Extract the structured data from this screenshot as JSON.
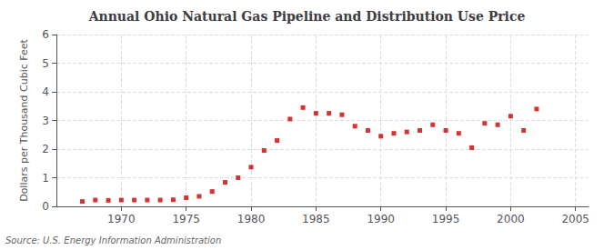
{
  "chart_data": {
    "type": "scatter",
    "title": "Annual Ohio Natural Gas Pipeline and Distribution Use Price",
    "ylabel": "Dollars per Thousand Cubic Feet",
    "annotation": "Source: U.S. Energy Information Administration",
    "x": [
      1967,
      1968,
      1969,
      1970,
      1971,
      1972,
      1973,
      1974,
      1975,
      1976,
      1977,
      1978,
      1979,
      1980,
      1981,
      1982,
      1983,
      1984,
      1985,
      1986,
      1987,
      1988,
      1989,
      1990,
      1991,
      1992,
      1993,
      1994,
      1995,
      1996,
      1997,
      1998,
      1999,
      2000,
      2001,
      2002
    ],
    "values": [
      0.17,
      0.22,
      0.21,
      0.22,
      0.22,
      0.22,
      0.22,
      0.23,
      0.3,
      0.35,
      0.52,
      0.84,
      1.0,
      1.37,
      1.95,
      2.3,
      3.05,
      3.45,
      3.25,
      3.25,
      3.2,
      2.8,
      2.65,
      2.45,
      2.55,
      2.6,
      2.65,
      2.85,
      2.65,
      2.55,
      2.05,
      2.9,
      2.85,
      3.15,
      2.65,
      3.4
    ],
    "color": "#cc0000",
    "marker": "square",
    "xlim": [
      1965,
      2006
    ],
    "ylim": [
      0,
      6
    ],
    "xticks": [
      1970,
      1975,
      1980,
      1985,
      1990,
      1995,
      2000,
      2005
    ],
    "yticks": [
      0,
      1,
      2,
      3,
      4,
      5,
      6
    ],
    "grid": true
  }
}
